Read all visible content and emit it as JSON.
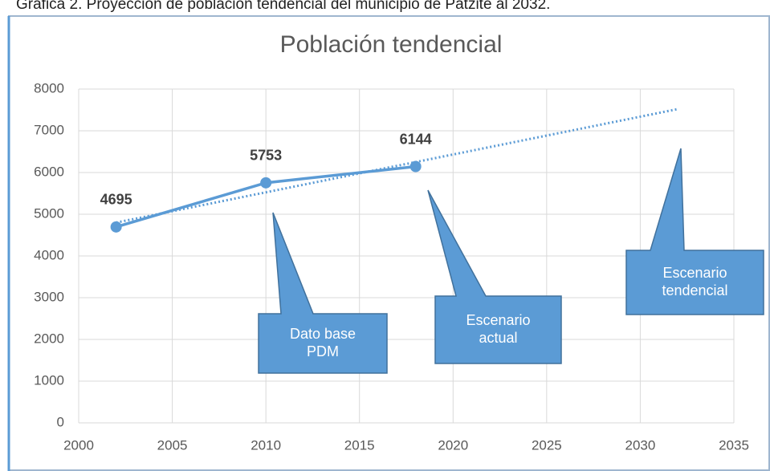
{
  "caption": "Gráfica 2. Proyección de población tendencial del municipio de Patzite al 2032.",
  "chart_data": {
    "type": "line",
    "title": "Población tendencial",
    "x": [
      2002,
      2010,
      2018
    ],
    "series": [
      {
        "color": "#5b9bd5",
        "values": [
          4695,
          5753,
          6144
        ]
      }
    ],
    "trendline": {
      "color": "#5b9bd5",
      "x": [
        2002,
        2032
      ],
      "values": [
        4800,
        7520
      ]
    },
    "xlim": [
      2000,
      2035
    ],
    "xticks": [
      2000,
      2005,
      2010,
      2015,
      2020,
      2025,
      2030,
      2035
    ],
    "ylim": [
      0,
      8000
    ],
    "yticks": [
      0,
      1000,
      2000,
      3000,
      4000,
      5000,
      6000,
      7000,
      8000
    ],
    "grid": true,
    "annotations": [
      {
        "lines": [
          "Dato base",
          "PDM"
        ],
        "color": "#5b9bd5"
      },
      {
        "lines": [
          "Escenario",
          "actual"
        ],
        "color": "#5b9bd5"
      },
      {
        "lines": [
          "Escenario",
          "tendencial"
        ],
        "color": "#5b9bd5"
      }
    ]
  }
}
